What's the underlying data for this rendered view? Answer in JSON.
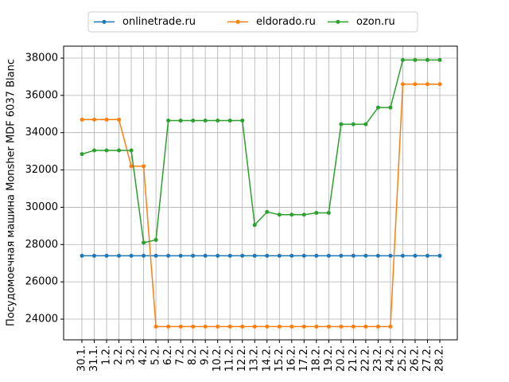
{
  "chart_data": {
    "type": "line",
    "y_label": "Посудомоечная машина Monsher MDF 6037 Blanc",
    "categories": [
      "30.1.",
      "31.1.",
      "1.2.",
      "2.2.",
      "3.2.",
      "4.2.",
      "5.2.",
      "6.2.",
      "7.2.",
      "8.2.",
      "9.2.",
      "10.2.",
      "11.2.",
      "12.2.",
      "13.2.",
      "14.2.",
      "15.2.",
      "16.2.",
      "17.2.",
      "18.2.",
      "19.2.",
      "20.2.",
      "21.2.",
      "22.2.",
      "23.2.",
      "24.2.",
      "25.2.",
      "26.2.",
      "27.2.",
      "28.2."
    ],
    "series": [
      {
        "name": "onlinetrade.ru",
        "color": "#1f77b4",
        "values": [
          27400,
          27400,
          27400,
          27400,
          27400,
          27400,
          27400,
          27400,
          27400,
          27400,
          27400,
          27400,
          27400,
          27400,
          27400,
          27400,
          27400,
          27400,
          27400,
          27400,
          27400,
          27400,
          27400,
          27400,
          27400,
          27400,
          27400,
          27400,
          27400,
          27400
        ]
      },
      {
        "name": "eldorado.ru",
        "color": "#ff7f0e",
        "values": [
          34700,
          34700,
          34700,
          34700,
          32200,
          32200,
          23600,
          23600,
          23600,
          23600,
          23600,
          23600,
          23600,
          23600,
          23600,
          23600,
          23600,
          23600,
          23600,
          23600,
          23600,
          23600,
          23600,
          23600,
          23600,
          23600,
          36600,
          36600,
          36600,
          36600
        ]
      },
      {
        "name": "ozon.ru",
        "color": "#2ca02c",
        "values": [
          32850,
          33050,
          33050,
          33050,
          33050,
          28100,
          28250,
          34650,
          34650,
          34650,
          34650,
          34650,
          34650,
          34650,
          29050,
          29750,
          29600,
          29600,
          29600,
          29700,
          29700,
          34450,
          34450,
          34450,
          35350,
          35350,
          37900,
          37900,
          37900,
          37900
        ]
      }
    ],
    "ylim": [
      22890,
      38640
    ],
    "yticks": [
      24000,
      26000,
      28000,
      30000,
      32000,
      34000,
      36000,
      38000
    ],
    "grid": true,
    "legend": "top"
  }
}
